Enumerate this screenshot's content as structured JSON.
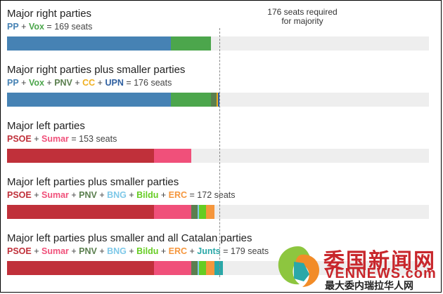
{
  "chart_data": {
    "type": "bar",
    "subtype": "stacked-horizontal",
    "x_unit": "seats",
    "xlim": [
      0,
      350
    ],
    "majority_threshold": 176,
    "majority_label_line1": "176 seats required",
    "majority_label_line2": "for majority",
    "parties": {
      "PP": {
        "name": "PP",
        "color": "#4682B4"
      },
      "Vox": {
        "name": "Vox",
        "color": "#4CA64C"
      },
      "PNV": {
        "name": "PNV",
        "color": "#5B7F4F"
      },
      "CC": {
        "name": "CC",
        "color": "#F0B020"
      },
      "UPN": {
        "name": "UPN",
        "color": "#2E5FA0"
      },
      "PSOE": {
        "name": "PSOE",
        "color": "#C0303A"
      },
      "Sumar": {
        "name": "Sumar",
        "color": "#F0507A"
      },
      "BNG": {
        "name": "BNG",
        "color": "#7EC8E8"
      },
      "Bildu": {
        "name": "Bildu",
        "color": "#66CC22"
      },
      "ERC": {
        "name": "ERC",
        "color": "#F5963C"
      },
      "Junts": {
        "name": "Junts",
        "color": "#2AA8A8"
      }
    },
    "rows": [
      {
        "title": "Major right parties",
        "total_text": "169 seats",
        "segments": [
          {
            "party": "PP",
            "value": 136
          },
          {
            "party": "Vox",
            "value": 33
          }
        ]
      },
      {
        "title": "Major right parties plus smaller parties",
        "total_text": "176 seats",
        "segments": [
          {
            "party": "PP",
            "value": 136
          },
          {
            "party": "Vox",
            "value": 33
          },
          {
            "party": "PNV",
            "value": 5
          },
          {
            "party": "CC",
            "value": 1
          },
          {
            "party": "UPN",
            "value": 1
          }
        ]
      },
      {
        "title": "Major left parties",
        "total_text": "153 seats",
        "segments": [
          {
            "party": "PSOE",
            "value": 122
          },
          {
            "party": "Sumar",
            "value": 31
          }
        ]
      },
      {
        "title": "Major left parties plus smaller parties",
        "total_text": "172 seats",
        "segments": [
          {
            "party": "PSOE",
            "value": 122
          },
          {
            "party": "Sumar",
            "value": 31
          },
          {
            "party": "PNV",
            "value": 5
          },
          {
            "party": "BNG",
            "value": 1
          },
          {
            "party": "Bildu",
            "value": 6
          },
          {
            "party": "ERC",
            "value": 7
          }
        ]
      },
      {
        "title": "Major left parties plus smaller and all Catalan parties",
        "total_text": "179 seats",
        "segments": [
          {
            "party": "PSOE",
            "value": 122
          },
          {
            "party": "Sumar",
            "value": 31
          },
          {
            "party": "PNV",
            "value": 5
          },
          {
            "party": "BNG",
            "value": 1
          },
          {
            "party": "Bildu",
            "value": 6
          },
          {
            "party": "ERC",
            "value": 7
          },
          {
            "party": "Junts",
            "value": 7
          }
        ]
      }
    ]
  },
  "watermark": {
    "title": "委国新闻网",
    "url": "VENNEWS.com",
    "tagline": "最大委内瑞拉华人网"
  }
}
